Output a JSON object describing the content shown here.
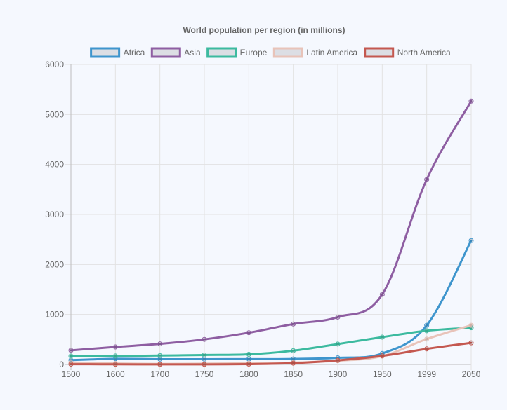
{
  "chart_data": {
    "type": "line",
    "title": "World population per region (in millions)",
    "xlabel": "",
    "ylabel": "",
    "categories": [
      "1500",
      "1600",
      "1700",
      "1750",
      "1800",
      "1850",
      "1900",
      "1950",
      "1999",
      "2050"
    ],
    "ylim": [
      0,
      6000
    ],
    "yticks": [
      0,
      1000,
      2000,
      3000,
      4000,
      5000,
      6000
    ],
    "grid": true,
    "legend_position": "top",
    "series": [
      {
        "name": "Africa",
        "color": "#3e95cd",
        "values": [
          86,
          114,
          106,
          106,
          107,
          111,
          133,
          221,
          783,
          2478
        ]
      },
      {
        "name": "Asia",
        "color": "#8e5ea2",
        "values": [
          282,
          350,
          411,
          502,
          635,
          809,
          947,
          1402,
          3700,
          5267
        ]
      },
      {
        "name": "Europe",
        "color": "#3cba9f",
        "values": [
          168,
          170,
          178,
          190,
          203,
          276,
          408,
          547,
          675,
          734
        ]
      },
      {
        "name": "Latin America",
        "color": "#e8c3b9",
        "values": [
          40,
          20,
          10,
          16,
          24,
          38,
          74,
          167,
          508,
          784
        ]
      },
      {
        "name": "North America",
        "color": "#c45850",
        "values": [
          6,
          3,
          2,
          2,
          7,
          26,
          82,
          172,
          312,
          433
        ]
      }
    ]
  }
}
